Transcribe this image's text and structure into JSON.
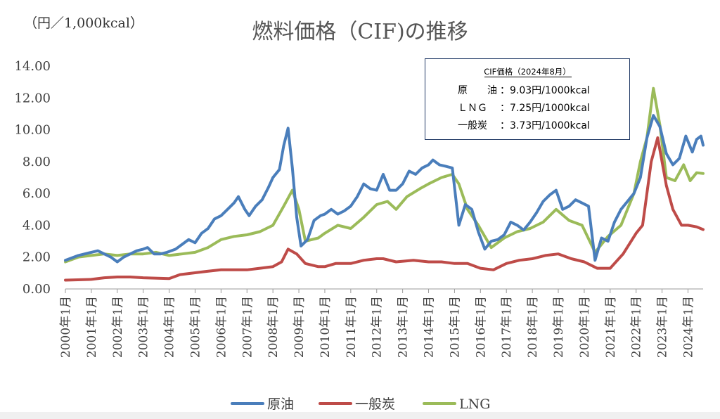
{
  "chart_data": {
    "type": "line",
    "title": "燃料価格（CIF)の推移",
    "unit_label": "（円／1,000kcal）",
    "ylim": [
      0,
      14
    ],
    "yticks": [
      "0.00",
      "2.00",
      "4.00",
      "6.00",
      "8.00",
      "10.00",
      "12.00",
      "14.00"
    ],
    "grid": false,
    "legend_position": "bottom",
    "x_range": [
      "2000-01",
      "2024-08"
    ],
    "x_tick_labels": [
      "2000年1月",
      "2001年1月",
      "2002年1月",
      "2003年1月",
      "2004年1月",
      "2005年1月",
      "2006年1月",
      "2007年1月",
      "2008年1月",
      "2009年1月",
      "2010年1月",
      "2011年1月",
      "2012年1月",
      "2013年1月",
      "2014年1月",
      "2015年1月",
      "2016年1月",
      "2017年1月",
      "2018年1月",
      "2019年1月",
      "2020年1月",
      "2021年1月",
      "2022年1月",
      "2023年1月",
      "2024年1月"
    ],
    "series": [
      {
        "name": "原油",
        "color": "#4a7ebb",
        "points": [
          [
            "2000-01",
            1.8
          ],
          [
            "2000-07",
            2.1
          ],
          [
            "2001-01",
            2.3
          ],
          [
            "2001-04",
            2.4
          ],
          [
            "2001-07",
            2.2
          ],
          [
            "2001-10",
            2.0
          ],
          [
            "2002-01",
            1.7
          ],
          [
            "2002-04",
            2.0
          ],
          [
            "2002-07",
            2.2
          ],
          [
            "2002-10",
            2.4
          ],
          [
            "2003-01",
            2.5
          ],
          [
            "2003-03",
            2.6
          ],
          [
            "2003-06",
            2.2
          ],
          [
            "2003-09",
            2.2
          ],
          [
            "2003-12",
            2.3
          ],
          [
            "2004-04",
            2.5
          ],
          [
            "2004-07",
            2.8
          ],
          [
            "2004-10",
            3.1
          ],
          [
            "2005-01",
            2.9
          ],
          [
            "2005-04",
            3.5
          ],
          [
            "2005-07",
            3.8
          ],
          [
            "2005-10",
            4.4
          ],
          [
            "2006-01",
            4.6
          ],
          [
            "2006-04",
            5.0
          ],
          [
            "2006-07",
            5.4
          ],
          [
            "2006-09",
            5.8
          ],
          [
            "2006-12",
            5.0
          ],
          [
            "2007-02",
            4.6
          ],
          [
            "2007-05",
            5.2
          ],
          [
            "2007-08",
            5.6
          ],
          [
            "2007-11",
            6.4
          ],
          [
            "2008-01",
            7.0
          ],
          [
            "2008-04",
            7.5
          ],
          [
            "2008-06",
            9.0
          ],
          [
            "2008-08",
            10.1
          ],
          [
            "2008-10",
            7.6
          ],
          [
            "2008-12",
            4.5
          ],
          [
            "2009-02",
            2.7
          ],
          [
            "2009-05",
            3.1
          ],
          [
            "2009-08",
            4.3
          ],
          [
            "2009-11",
            4.6
          ],
          [
            "2010-01",
            4.7
          ],
          [
            "2010-04",
            5.0
          ],
          [
            "2010-07",
            4.7
          ],
          [
            "2010-10",
            4.9
          ],
          [
            "2011-01",
            5.2
          ],
          [
            "2011-04",
            5.8
          ],
          [
            "2011-07",
            6.6
          ],
          [
            "2011-10",
            6.3
          ],
          [
            "2012-01",
            6.2
          ],
          [
            "2012-04",
            7.2
          ],
          [
            "2012-07",
            6.2
          ],
          [
            "2012-10",
            6.2
          ],
          [
            "2013-01",
            6.6
          ],
          [
            "2013-04",
            7.4
          ],
          [
            "2013-07",
            7.2
          ],
          [
            "2013-10",
            7.6
          ],
          [
            "2014-01",
            7.8
          ],
          [
            "2014-03",
            8.1
          ],
          [
            "2014-06",
            7.8
          ],
          [
            "2014-09",
            7.7
          ],
          [
            "2014-12",
            7.6
          ],
          [
            "2015-03",
            4.0
          ],
          [
            "2015-06",
            5.3
          ],
          [
            "2015-09",
            5.0
          ],
          [
            "2015-12",
            3.6
          ],
          [
            "2016-03",
            2.5
          ],
          [
            "2016-06",
            3.0
          ],
          [
            "2016-09",
            3.1
          ],
          [
            "2016-12",
            3.4
          ],
          [
            "2017-03",
            4.2
          ],
          [
            "2017-06",
            4.0
          ],
          [
            "2017-09",
            3.7
          ],
          [
            "2017-12",
            4.2
          ],
          [
            "2018-03",
            4.8
          ],
          [
            "2018-06",
            5.5
          ],
          [
            "2018-09",
            5.9
          ],
          [
            "2018-12",
            6.2
          ],
          [
            "2019-03",
            5.0
          ],
          [
            "2019-06",
            5.2
          ],
          [
            "2019-09",
            5.6
          ],
          [
            "2019-12",
            5.4
          ],
          [
            "2020-03",
            5.2
          ],
          [
            "2020-06",
            1.8
          ],
          [
            "2020-09",
            3.2
          ],
          [
            "2020-12",
            3.0
          ],
          [
            "2021-03",
            4.2
          ],
          [
            "2021-06",
            5.0
          ],
          [
            "2021-09",
            5.5
          ],
          [
            "2021-12",
            6.0
          ],
          [
            "2022-03",
            7.0
          ],
          [
            "2022-06",
            9.5
          ],
          [
            "2022-09",
            10.9
          ],
          [
            "2022-12",
            10.2
          ],
          [
            "2023-03",
            8.5
          ],
          [
            "2023-06",
            7.8
          ],
          [
            "2023-09",
            8.2
          ],
          [
            "2023-12",
            9.6
          ],
          [
            "2024-03",
            8.6
          ],
          [
            "2024-05",
            9.4
          ],
          [
            "2024-07",
            9.6
          ],
          [
            "2024-08",
            9.03
          ]
        ]
      },
      {
        "name": "一般炭",
        "color": "#be4b48",
        "points": [
          [
            "2000-01",
            0.55
          ],
          [
            "2001-01",
            0.6
          ],
          [
            "2001-07",
            0.7
          ],
          [
            "2002-01",
            0.75
          ],
          [
            "2002-07",
            0.75
          ],
          [
            "2003-01",
            0.7
          ],
          [
            "2004-01",
            0.65
          ],
          [
            "2004-06",
            0.9
          ],
          [
            "2004-12",
            1.0
          ],
          [
            "2005-06",
            1.1
          ],
          [
            "2006-01",
            1.2
          ],
          [
            "2006-07",
            1.2
          ],
          [
            "2007-01",
            1.2
          ],
          [
            "2007-07",
            1.3
          ],
          [
            "2008-01",
            1.4
          ],
          [
            "2008-05",
            1.7
          ],
          [
            "2008-08",
            2.5
          ],
          [
            "2008-12",
            2.2
          ],
          [
            "2009-04",
            1.6
          ],
          [
            "2009-10",
            1.4
          ],
          [
            "2010-01",
            1.4
          ],
          [
            "2010-06",
            1.6
          ],
          [
            "2011-01",
            1.6
          ],
          [
            "2011-07",
            1.8
          ],
          [
            "2012-01",
            1.9
          ],
          [
            "2012-04",
            1.9
          ],
          [
            "2012-10",
            1.7
          ],
          [
            "2013-06",
            1.8
          ],
          [
            "2014-01",
            1.7
          ],
          [
            "2014-07",
            1.7
          ],
          [
            "2015-01",
            1.6
          ],
          [
            "2015-07",
            1.6
          ],
          [
            "2016-01",
            1.3
          ],
          [
            "2016-07",
            1.2
          ],
          [
            "2017-01",
            1.6
          ],
          [
            "2017-07",
            1.8
          ],
          [
            "2018-01",
            1.9
          ],
          [
            "2018-07",
            2.1
          ],
          [
            "2019-01",
            2.2
          ],
          [
            "2019-07",
            1.9
          ],
          [
            "2020-01",
            1.7
          ],
          [
            "2020-07",
            1.3
          ],
          [
            "2021-01",
            1.3
          ],
          [
            "2021-07",
            2.2
          ],
          [
            "2022-01",
            3.5
          ],
          [
            "2022-04",
            4.0
          ],
          [
            "2022-08",
            8.0
          ],
          [
            "2022-11",
            9.5
          ],
          [
            "2023-03",
            6.5
          ],
          [
            "2023-06",
            5.0
          ],
          [
            "2023-10",
            4.0
          ],
          [
            "2024-01",
            4.0
          ],
          [
            "2024-05",
            3.9
          ],
          [
            "2024-08",
            3.73
          ]
        ]
      },
      {
        "name": "LNG",
        "color": "#9bbb59",
        "points": [
          [
            "2000-01",
            1.7
          ],
          [
            "2000-07",
            2.0
          ],
          [
            "2001-01",
            2.1
          ],
          [
            "2001-07",
            2.2
          ],
          [
            "2002-01",
            2.1
          ],
          [
            "2002-07",
            2.2
          ],
          [
            "2003-01",
            2.2
          ],
          [
            "2003-07",
            2.3
          ],
          [
            "2004-01",
            2.1
          ],
          [
            "2004-07",
            2.2
          ],
          [
            "2005-01",
            2.3
          ],
          [
            "2005-07",
            2.6
          ],
          [
            "2006-01",
            3.1
          ],
          [
            "2006-07",
            3.3
          ],
          [
            "2007-01",
            3.4
          ],
          [
            "2007-07",
            3.6
          ],
          [
            "2008-01",
            4.0
          ],
          [
            "2008-06",
            5.2
          ],
          [
            "2008-10",
            6.2
          ],
          [
            "2009-01",
            5.0
          ],
          [
            "2009-04",
            3.0
          ],
          [
            "2009-10",
            3.2
          ],
          [
            "2010-01",
            3.5
          ],
          [
            "2010-07",
            4.0
          ],
          [
            "2011-01",
            3.8
          ],
          [
            "2011-07",
            4.5
          ],
          [
            "2012-01",
            5.3
          ],
          [
            "2012-06",
            5.5
          ],
          [
            "2012-10",
            5.0
          ],
          [
            "2013-03",
            5.8
          ],
          [
            "2013-09",
            6.3
          ],
          [
            "2014-01",
            6.6
          ],
          [
            "2014-07",
            7.0
          ],
          [
            "2014-12",
            7.2
          ],
          [
            "2015-03",
            6.6
          ],
          [
            "2015-07",
            5.0
          ],
          [
            "2015-12",
            4.0
          ],
          [
            "2016-06",
            2.6
          ],
          [
            "2016-12",
            3.2
          ],
          [
            "2017-06",
            3.6
          ],
          [
            "2017-12",
            3.8
          ],
          [
            "2018-06",
            4.2
          ],
          [
            "2018-12",
            5.0
          ],
          [
            "2019-06",
            4.3
          ],
          [
            "2019-12",
            4.0
          ],
          [
            "2020-06",
            2.3
          ],
          [
            "2020-12",
            3.3
          ],
          [
            "2021-06",
            4.0
          ],
          [
            "2021-12",
            6.0
          ],
          [
            "2022-03",
            8.0
          ],
          [
            "2022-06",
            9.5
          ],
          [
            "2022-09",
            12.6
          ],
          [
            "2022-12",
            10.3
          ],
          [
            "2023-03",
            7.0
          ],
          [
            "2023-07",
            6.8
          ],
          [
            "2023-11",
            7.8
          ],
          [
            "2024-02",
            6.8
          ],
          [
            "2024-05",
            7.3
          ],
          [
            "2024-08",
            7.25
          ]
        ]
      }
    ]
  },
  "info_box": {
    "heading": "CIF価格（2024年8月）",
    "rows": [
      {
        "name": "原　　油",
        "value": "9.03円/1000kcal"
      },
      {
        "name": "ＬＮＧ",
        "value": "7.25円/1000kcal"
      },
      {
        "name": "一般炭",
        "value": "3.73円/1000kcal"
      }
    ]
  },
  "legend": [
    {
      "label": "原油",
      "color": "#4a7ebb"
    },
    {
      "label": "一般炭",
      "color": "#be4b48"
    },
    {
      "label": "LNG",
      "color": "#9bbb59"
    }
  ]
}
